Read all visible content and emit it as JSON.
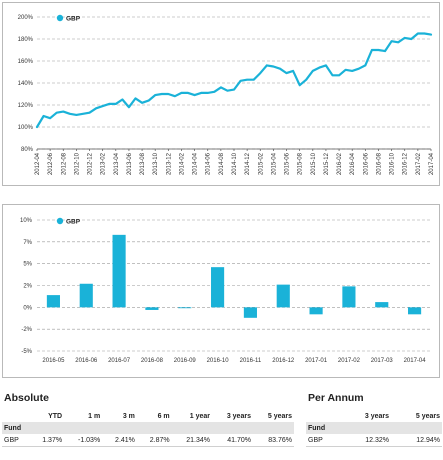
{
  "chart_data": [
    {
      "type": "line",
      "title": "",
      "xlabel": "",
      "ylabel": "",
      "legend": "top-left",
      "grid": true,
      "ylim": [
        80,
        200
      ],
      "yticks": [
        80,
        100,
        120,
        140,
        160,
        180,
        200
      ],
      "ytick_labels": [
        "80%",
        "100%",
        "120%",
        "140%",
        "160%",
        "180%",
        "200%"
      ],
      "xtick_labels": [
        "2012-04",
        "2012-06",
        "2012-08",
        "2012-10",
        "2012-12",
        "2013-02",
        "2013-04",
        "2013-06",
        "2013-08",
        "2013-10",
        "2013-12",
        "2014-02",
        "2014-04",
        "2014-06",
        "2014-08",
        "2014-10",
        "2014-12",
        "2015-02",
        "2015-04",
        "2015-06",
        "2015-08",
        "2015-10",
        "2015-12",
        "2016-02",
        "2016-04",
        "2016-06",
        "2016-08",
        "2016-10",
        "2016-12",
        "2017-02",
        "2017-04"
      ],
      "series": [
        {
          "name": "GBP",
          "color": "#1ab2d8",
          "values": [
            100,
            110,
            108,
            113,
            114,
            112,
            111,
            112,
            113,
            117,
            119,
            121,
            121,
            125,
            118,
            126,
            122,
            124,
            129,
            130,
            130,
            128,
            131,
            131,
            129,
            131,
            131,
            132,
            136,
            133,
            134,
            142,
            143,
            143,
            149,
            156,
            155,
            153,
            149,
            151,
            138,
            143,
            151,
            154,
            156,
            147,
            147,
            152,
            151,
            153,
            156,
            170,
            170,
            169,
            178,
            177,
            181,
            180,
            185,
            185,
            184
          ]
        }
      ]
    },
    {
      "type": "bar",
      "title": "",
      "xlabel": "",
      "ylabel": "",
      "legend": "top-left",
      "grid": true,
      "ylim": [
        -5,
        10
      ],
      "yticks": [
        -5,
        -2.5,
        0,
        2.5,
        5,
        7.5,
        10
      ],
      "ytick_labels": [
        "-5%",
        "-2%",
        "0%",
        "2%",
        "5%",
        "7%",
        "10%"
      ],
      "categories": [
        "2016-05",
        "2016-06",
        "2016-07",
        "2016-08",
        "2016-09",
        "2016-10",
        "2016-11",
        "2016-12",
        "2017-01",
        "2017-02",
        "2017-03",
        "2017-04"
      ],
      "series": [
        {
          "name": "GBP",
          "color": "#1ab2d8",
          "values": [
            1.4,
            2.7,
            8.3,
            -0.3,
            -0.1,
            4.6,
            -1.2,
            2.6,
            -0.8,
            2.4,
            0.6,
            -0.8
          ]
        }
      ]
    }
  ],
  "tables": {
    "absolute": {
      "title": "Absolute",
      "columns": [
        "",
        "YTD",
        "1 m",
        "3 m",
        "6 m",
        "1 year",
        "3 years",
        "5 years"
      ],
      "group_label": "Fund",
      "rows": [
        {
          "label": "GBP",
          "cells": [
            "1.37%",
            "-1.03%",
            "2.41%",
            "2.87%",
            "21.34%",
            "41.70%",
            "83.76%"
          ]
        }
      ]
    },
    "per_annum": {
      "title": "Per Annum",
      "columns": [
        "",
        "3 years",
        "5 years"
      ],
      "group_label": "Fund",
      "rows": [
        {
          "label": "GBP",
          "cells": [
            "12.32%",
            "12.94%"
          ]
        }
      ]
    }
  }
}
